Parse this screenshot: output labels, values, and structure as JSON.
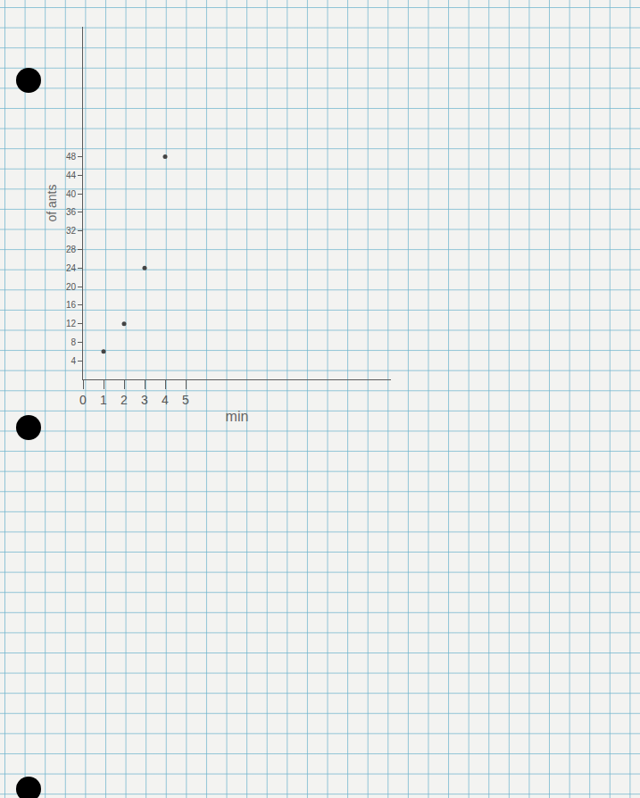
{
  "chart_data": {
    "type": "scatter",
    "x_label": "min",
    "y_label": "of ants",
    "x": [
      1,
      2,
      3,
      4
    ],
    "values": [
      6,
      12,
      24,
      48
    ],
    "xlim": [
      0,
      15
    ],
    "xticks": [
      0,
      1,
      2,
      3,
      4,
      5
    ],
    "ylim": [
      0,
      76
    ],
    "yticks": [
      4,
      8,
      12,
      16,
      20,
      24,
      28,
      32,
      36,
      40,
      44,
      48
    ],
    "color": "#444444",
    "marker": "circle",
    "grid": false
  }
}
